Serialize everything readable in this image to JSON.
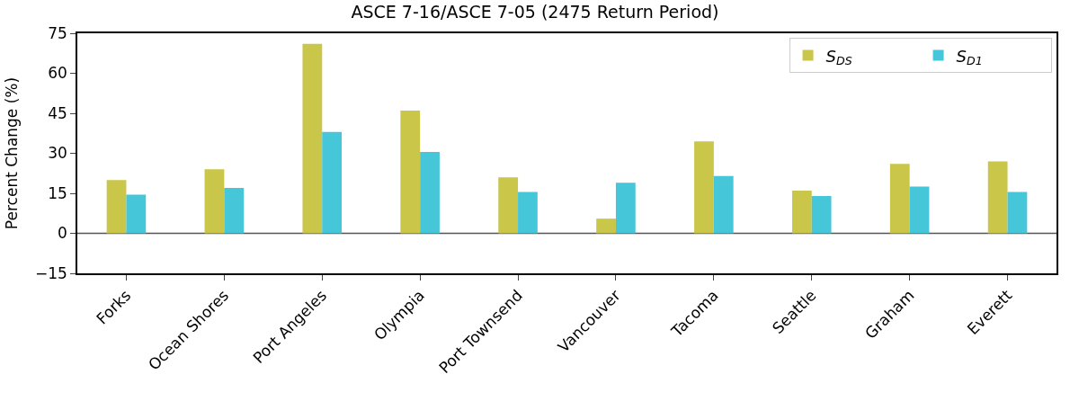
{
  "chart_data": {
    "type": "bar",
    "title": "ASCE 7-16/ASCE 7-05 (2475 Return Period)",
    "ylabel": "Percent Change (%)",
    "categories": [
      "Forks",
      "Ocean Shores",
      "Port Angeles",
      "Olympia",
      "Port Townsend",
      "Vancouver",
      "Tacoma",
      "Seattle",
      "Graham",
      "Everett"
    ],
    "series": [
      {
        "name": "S$_{DS}$",
        "color": "#c9c64a",
        "values": [
          20,
          24,
          71,
          46,
          21,
          5.5,
          34.5,
          16,
          26,
          27
        ]
      },
      {
        "name": "S$_{D1}$",
        "color": "#45c7d9",
        "values": [
          14.5,
          17,
          38,
          30.5,
          15.5,
          19,
          21.5,
          14,
          17.5,
          15.5
        ]
      }
    ],
    "ylim": [
      -15,
      75
    ],
    "yticks": [
      {
        "value": -15,
        "label": "−15"
      },
      0,
      15,
      30,
      45,
      60,
      75
    ],
    "ref_lines": [
      {
        "axis": "y",
        "value": 0,
        "color": "#555555"
      }
    ],
    "legend": "top right",
    "grid": false
  }
}
